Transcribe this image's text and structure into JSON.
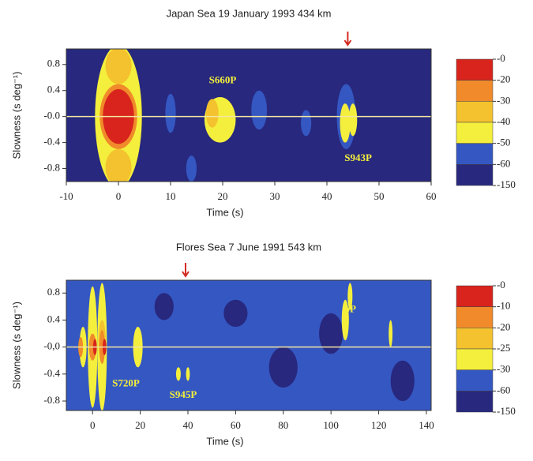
{
  "chart_data": [
    {
      "type": "heatmap",
      "title": "Japan Sea 19 January 1993 434 km",
      "xlabel": "Time (s)",
      "ylabel": "Slowness (s deg⁻¹)",
      "xlim": [
        -10,
        60
      ],
      "xticks": [
        -10,
        0,
        10,
        20,
        30,
        40,
        50,
        60
      ],
      "ylim": [
        -1,
        1.04
      ],
      "yticks": [
        0.8,
        0.4,
        {
          "value": 0,
          "label": "-0.0"
        },
        -0.4,
        -0.8
      ],
      "colors": [
        "#d8241c",
        "#f08a2a",
        "#f3c22e",
        "#f4ef3c",
        "#3557c2",
        "#27287e"
      ],
      "levels": [
        {
          "value": 0,
          "label": "-0"
        },
        -20,
        -30,
        -40,
        -50,
        -60,
        -150
      ],
      "background_level": 5,
      "marker_time": 44,
      "patches": [
        [
          0,
          0,
          4.5,
          1.1,
          3
        ],
        [
          0,
          0.78,
          2.5,
          0.28,
          2
        ],
        [
          0,
          -0.78,
          2.5,
          0.28,
          2
        ],
        [
          0,
          0,
          3.6,
          0.5,
          1
        ],
        [
          0,
          0,
          3,
          0.42,
          0
        ],
        [
          10,
          0.05,
          1,
          0.3,
          4
        ],
        [
          27,
          0.1,
          1.5,
          0.3,
          4
        ],
        [
          36,
          -0.1,
          1,
          0.2,
          4
        ],
        [
          43.7,
          0,
          1.8,
          0.5,
          4
        ],
        [
          14,
          -0.8,
          1,
          0.2,
          4
        ],
        [
          19.5,
          -0.05,
          3,
          0.35,
          3
        ],
        [
          18,
          0.05,
          1.2,
          0.22,
          2
        ],
        [
          43.5,
          -0.1,
          1,
          0.3,
          3
        ],
        [
          45,
          -0.05,
          0.8,
          0.25,
          3
        ]
      ],
      "annotations": [
        {
          "text": "S660P",
          "x": 20,
          "y": 0.55
        },
        {
          "text": "S943P",
          "x": 46,
          "y": -0.65
        }
      ]
    },
    {
      "type": "heatmap",
      "title": "Flores Sea 7 June 1991 543 km",
      "xlabel": "Time (s)",
      "ylabel": "Slowness (s deg⁻¹)",
      "xlim": [
        -11,
        142
      ],
      "xticks": [
        0,
        20,
        40,
        60,
        80,
        100,
        120,
        140
      ],
      "ylim": [
        -0.94,
        0.99
      ],
      "yticks": [
        0.8,
        0.4,
        {
          "value": 0,
          "label": "-0,0"
        },
        -0.4,
        -0.8
      ],
      "colors": [
        "#d8241c",
        "#f08a2a",
        "#f3c22e",
        "#f4ef3c",
        "#3557c2",
        "#27287e"
      ],
      "levels": [
        {
          "value": 0,
          "label": "-0"
        },
        -10,
        -20,
        -25,
        -30,
        -60,
        -150
      ],
      "background_level": 4,
      "marker_time": 39,
      "patches": [
        [
          60,
          0.5,
          5,
          0.2,
          5
        ],
        [
          80,
          -0.3,
          6,
          0.3,
          5
        ],
        [
          100,
          0.2,
          5,
          0.3,
          5
        ],
        [
          130,
          -0.5,
          5,
          0.3,
          5
        ],
        [
          30,
          0.6,
          4,
          0.2,
          5
        ],
        [
          0,
          0,
          2,
          0.9,
          3
        ],
        [
          4,
          0,
          2,
          0.95,
          3
        ],
        [
          -4,
          0,
          1.5,
          0.3,
          3
        ],
        [
          19,
          0,
          2,
          0.3,
          3
        ],
        [
          4,
          0.1,
          1.5,
          0.3,
          2
        ],
        [
          0,
          0,
          1.5,
          0.2,
          1
        ],
        [
          4,
          0,
          1.2,
          0.25,
          1
        ],
        [
          -5,
          0,
          1,
          0.15,
          1
        ],
        [
          1,
          0,
          0.8,
          0.12,
          0
        ],
        [
          5,
          0,
          0.8,
          0.12,
          0
        ],
        [
          36,
          -0.4,
          1,
          0.1,
          3
        ],
        [
          40,
          -0.4,
          0.8,
          0.1,
          3
        ],
        [
          106,
          0.4,
          1.5,
          0.3,
          3
        ],
        [
          108,
          0.75,
          1,
          0.2,
          3
        ],
        [
          125,
          0.2,
          0.8,
          0.2,
          3
        ]
      ],
      "annotations": [
        {
          "text": "S720P",
          "x": 14,
          "y": -0.55
        },
        {
          "text": "S945P",
          "x": 38,
          "y": -0.72
        },
        {
          "text": "pP",
          "x": 108,
          "y": 0.55
        }
      ]
    }
  ]
}
